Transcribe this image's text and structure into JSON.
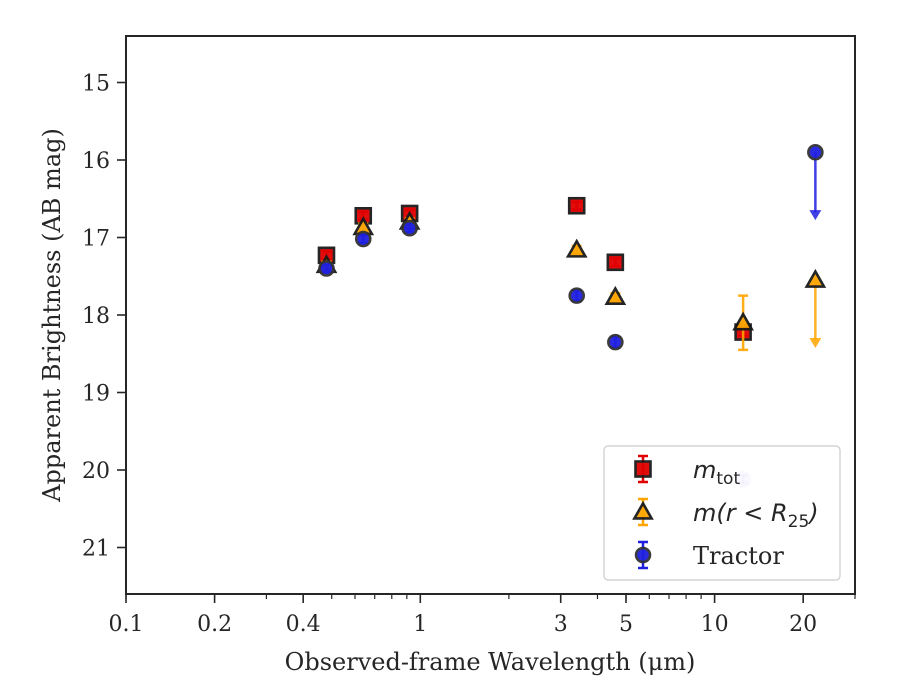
{
  "chart_data": {
    "type": "scatter",
    "title": "",
    "xlabel": "Observed-frame Wavelength (μm)",
    "ylabel": "Apparent Brightness (AB mag)",
    "xscale": "log",
    "xlim": [
      0.1,
      30
    ],
    "ylim": [
      21.6,
      14.4
    ],
    "y_inverted": true,
    "xticks": [
      {
        "value": 0.1,
        "label": "0.1"
      },
      {
        "value": 0.2,
        "label": "0.2"
      },
      {
        "value": 0.4,
        "label": "0.4"
      },
      {
        "value": 1,
        "label": "1"
      },
      {
        "value": 3,
        "label": "3"
      },
      {
        "value": 5,
        "label": "5"
      },
      {
        "value": 10,
        "label": "10"
      },
      {
        "value": 20,
        "label": "20"
      }
    ],
    "yticks": [
      {
        "value": 15,
        "label": "15"
      },
      {
        "value": 16,
        "label": "16"
      },
      {
        "value": 17,
        "label": "17"
      },
      {
        "value": 18,
        "label": "18"
      },
      {
        "value": 19,
        "label": "19"
      },
      {
        "value": 20,
        "label": "20"
      },
      {
        "value": 21,
        "label": "21"
      }
    ],
    "legend_position": "lower-right",
    "series": [
      {
        "name": "m_tot",
        "legend_main": "m",
        "legend_sub": "tot",
        "marker": "square",
        "color": "#e00000",
        "edge_color": "#1a1a1a",
        "points": [
          {
            "x": 0.48,
            "y": 17.23,
            "err": 0.05
          },
          {
            "x": 0.64,
            "y": 16.72,
            "err": 0.05
          },
          {
            "x": 0.92,
            "y": 16.69,
            "err": 0.05
          },
          {
            "x": 3.4,
            "y": 16.59,
            "err": 0.05
          },
          {
            "x": 4.6,
            "y": 17.32,
            "err": 0.05
          },
          {
            "x": 12.5,
            "y": 18.22,
            "err": 0.05
          }
        ]
      },
      {
        "name": "m(r < R25)",
        "legend_main": "m(r < R",
        "legend_sub": "25",
        "legend_tail": ")",
        "marker": "triangle",
        "color": "#ffa500",
        "edge_color": "#1a1a1a",
        "points": [
          {
            "x": 0.48,
            "y": 17.36,
            "err": 0.05
          },
          {
            "x": 0.64,
            "y": 16.87,
            "err": 0.05
          },
          {
            "x": 0.92,
            "y": 16.8,
            "err": 0.05
          },
          {
            "x": 3.4,
            "y": 17.16,
            "err": 0.05
          },
          {
            "x": 4.6,
            "y": 17.77,
            "err": 0.05
          },
          {
            "x": 12.5,
            "y": 18.1,
            "err": 0.35
          },
          {
            "x": 22.0,
            "y": 17.55,
            "upper_limit": true,
            "limit_to": 18.4
          }
        ]
      },
      {
        "name": "Tractor",
        "marker": "circle",
        "color": "#1f1fe0",
        "edge_color": "#333333",
        "points": [
          {
            "x": 0.48,
            "y": 17.4,
            "err": 0.05
          },
          {
            "x": 0.64,
            "y": 17.02,
            "err": 0.05
          },
          {
            "x": 0.92,
            "y": 16.88,
            "err": 0.05
          },
          {
            "x": 3.4,
            "y": 17.75,
            "err": 0.07
          },
          {
            "x": 4.6,
            "y": 18.35,
            "err": 0.07
          },
          {
            "x": 12.5,
            "y": 20.12,
            "err": 0.05,
            "faint": true
          },
          {
            "x": 22.0,
            "y": 15.9,
            "upper_limit": true,
            "limit_to": 16.75
          }
        ]
      }
    ]
  }
}
